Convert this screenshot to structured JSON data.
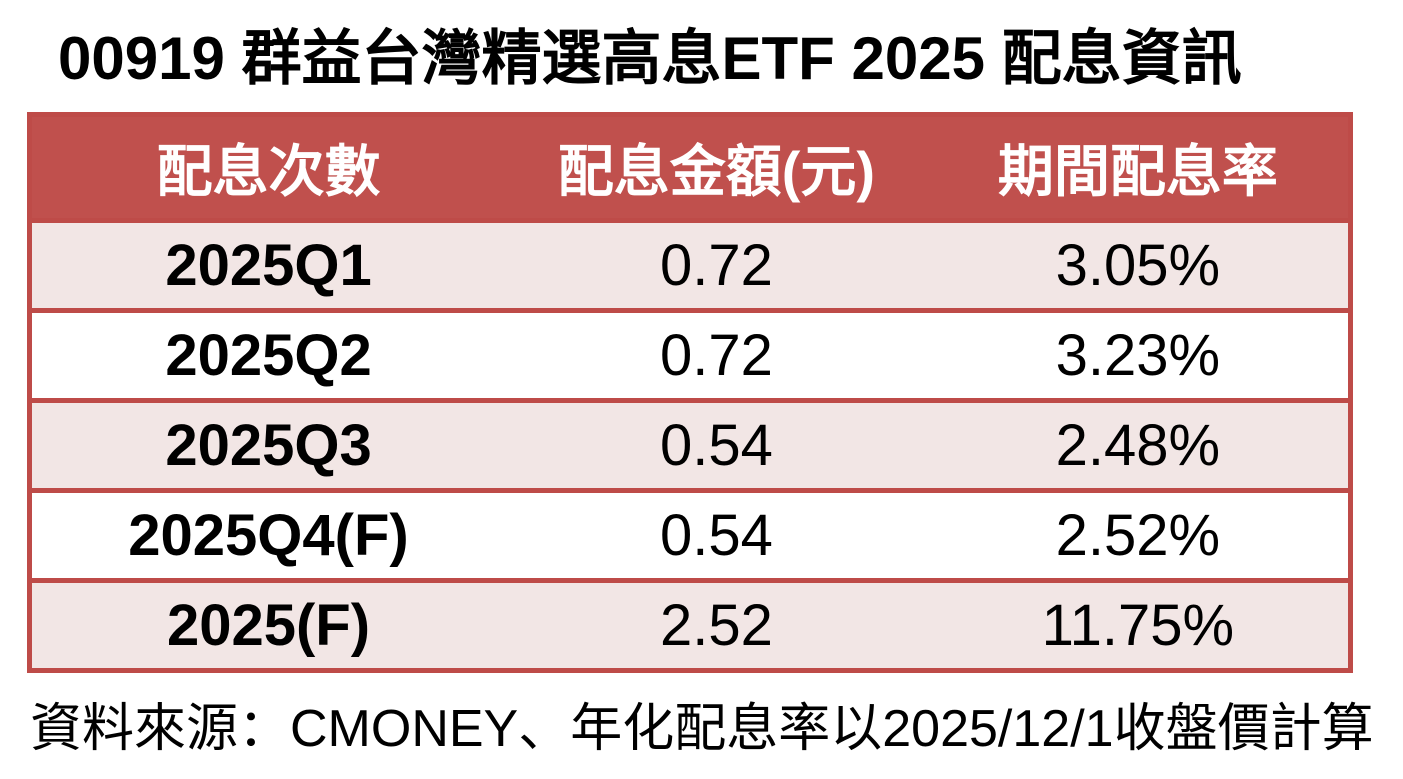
{
  "title": "00919 群益台灣精選高息ETF 2025 配息資訊",
  "chart_data": {
    "type": "table",
    "title": "00919 群益台灣精選高息ETF 2025 配息資訊",
    "columns": [
      "配息次數",
      "配息金額(元)",
      "期間配息率"
    ],
    "rows": [
      [
        "2025Q1",
        "0.72",
        "3.05%"
      ],
      [
        "2025Q2",
        "0.72",
        "3.23%"
      ],
      [
        "2025Q3",
        "0.54",
        "2.48%"
      ],
      [
        "2025Q4(F)",
        "0.54",
        "2.52%"
      ],
      [
        "2025(F)",
        "2.52",
        "11.75%"
      ]
    ],
    "source_note": "資料來源：CMONEY、年化配息率以2025/12/1收盤價計算"
  },
  "colors": {
    "header_bg": "#C0504D",
    "border": "#BE4B48",
    "alt_row_bg": "#F2E6E5",
    "header_text": "#FFFFFF",
    "text": "#000000",
    "page_bg": "#FFFFFF"
  }
}
